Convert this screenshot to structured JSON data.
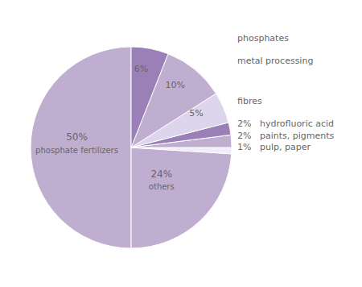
{
  "chart_data": {
    "type": "pie",
    "categories": [
      "phosphate fertilizers",
      "others",
      "pulp, paper",
      "paints, pigments",
      "hydrofluoric acid",
      "fibres",
      "metal processing",
      "phosphates"
    ],
    "values": [
      50,
      24,
      1,
      2,
      2,
      5,
      10,
      6
    ],
    "value_labels": [
      "50%",
      "24%",
      "1%",
      "2%",
      "2%",
      "5%",
      "10%",
      "6%"
    ],
    "colors": [
      "#c0aed0",
      "#c0aed0",
      "#f0ecf8",
      "#c0aed0",
      "#9b80b8",
      "#ddd5ec",
      "#c0aed0",
      "#9b80b8"
    ],
    "data_labels": true
  }
}
